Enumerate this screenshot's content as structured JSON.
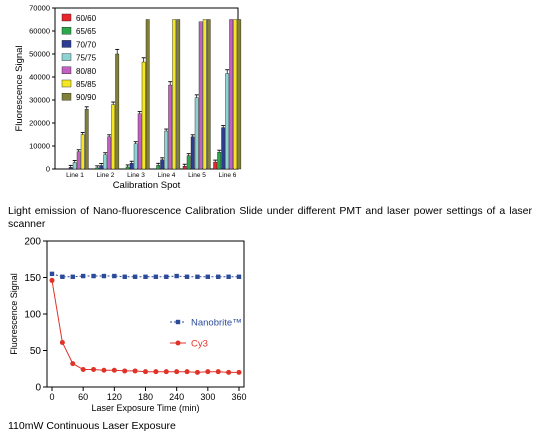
{
  "chart_data": [
    {
      "type": "bar",
      "title": "",
      "xlabel": "Calibration Spot",
      "ylabel": "Fluorescence Signal",
      "ylim": [
        0,
        70000
      ],
      "yticks": [
        0,
        10000,
        20000,
        30000,
        40000,
        50000,
        60000,
        70000
      ],
      "categories": [
        "Line 1",
        "Line 2",
        "Line 3",
        "Line 4",
        "Line 5",
        "Line 6"
      ],
      "grid": false,
      "error_bars": true,
      "legend_position": "top-left",
      "series": [
        {
          "name": "60/60",
          "color": "#e8262b",
          "values": [
            0,
            0,
            0,
            0,
            1200,
            3000
          ]
        },
        {
          "name": "65/65",
          "color": "#2aa84a",
          "values": [
            0,
            500,
            900,
            1600,
            5800,
            7300
          ]
        },
        {
          "name": "70/70",
          "color": "#2b3d95",
          "values": [
            700,
            1500,
            2500,
            4000,
            14000,
            18000
          ]
        },
        {
          "name": "75/75",
          "color": "#8ed3d3",
          "values": [
            2800,
            6200,
            11000,
            16500,
            31000,
            41500
          ]
        },
        {
          "name": "80/80",
          "color": "#c261c2",
          "values": [
            7500,
            14000,
            24000,
            36500,
            64000,
            65000
          ]
        },
        {
          "name": "85/85",
          "color": "#f3e823",
          "values": [
            15000,
            28000,
            46500,
            65000,
            65000,
            65000
          ]
        },
        {
          "name": "90/90",
          "color": "#808038",
          "values": [
            26000,
            50000,
            65000,
            65000,
            65000,
            65000
          ]
        }
      ]
    },
    {
      "type": "line",
      "title": "",
      "xlabel": "Laser Exposure Time (min)",
      "ylabel": "Fluorescence Signal",
      "xlim": [
        0,
        360
      ],
      "ylim": [
        0,
        200
      ],
      "xticks": [
        0,
        60,
        120,
        180,
        240,
        300,
        360
      ],
      "yticks": [
        0,
        50,
        100,
        150,
        200
      ],
      "grid": false,
      "legend_position": "right",
      "x": [
        0,
        20,
        40,
        60,
        80,
        100,
        120,
        140,
        160,
        180,
        200,
        220,
        240,
        260,
        280,
        300,
        320,
        340,
        360
      ],
      "series": [
        {
          "name": "Nanobrite™",
          "color": "#2b4a9a",
          "marker": "square",
          "values": [
            155,
            151,
            151,
            152,
            152,
            152,
            152,
            151,
            151,
            151,
            151,
            151,
            152,
            151,
            151,
            151,
            151,
            151,
            151
          ]
        },
        {
          "name": "Cy3",
          "color": "#e03228",
          "marker": "circle",
          "values": [
            146,
            61,
            32,
            24,
            24,
            23,
            23,
            22,
            22,
            21,
            21,
            21,
            21,
            21,
            20,
            21,
            21,
            20,
            20
          ]
        }
      ]
    }
  ],
  "captions": {
    "top": "Light emission of Nano-fluorescence Calibration Slide under different PMT and laser power settings of a laser scanner",
    "bottom": "110mW Continuous Laser Exposure"
  }
}
